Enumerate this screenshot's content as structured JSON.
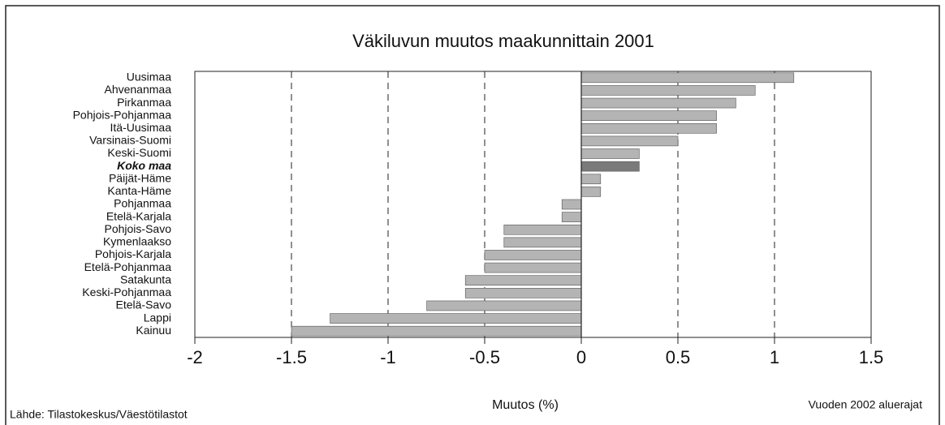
{
  "chart_data": {
    "type": "barh",
    "title": "Väkiluvun muutos maakunnittain 2001",
    "xlabel": "Muutos (%)",
    "source": "Lähde: Tilastokeskus/Väestötilastot",
    "note": "Vuoden 2002 aluerajat",
    "categories": [
      "Uusimaa",
      "Ahvenanmaa",
      "Pirkanmaa",
      "Pohjois-Pohjanmaa",
      "Itä-Uusimaa",
      "Varsinais-Suomi",
      "Keski-Suomi",
      "Koko maa",
      "Päijät-Häme",
      "Kanta-Häme",
      "Pohjanmaa",
      "Etelä-Karjala",
      "Pohjois-Savo",
      "Kymenlaakso",
      "Pohjois-Karjala",
      "Etelä-Pohjanmaa",
      "Satakunta",
      "Keski-Pohjanmaa",
      "Etelä-Savo",
      "Lappi",
      "Kainuu"
    ],
    "values": [
      1.1,
      0.9,
      0.8,
      0.7,
      0.7,
      0.5,
      0.3,
      0.3,
      0.1,
      0.1,
      -0.1,
      -0.1,
      -0.4,
      -0.4,
      -0.5,
      -0.5,
      -0.6,
      -0.6,
      -0.8,
      -1.3,
      -1.5
    ],
    "color": "#b4b4b4",
    "highlight_color": "#7a7a7a",
    "highlight_index": 7,
    "xlim": [
      -2,
      1.5
    ],
    "xticks": [
      -2,
      -1.5,
      -1,
      -0.5,
      0,
      0.5,
      1,
      1.5
    ],
    "grid": true
  }
}
